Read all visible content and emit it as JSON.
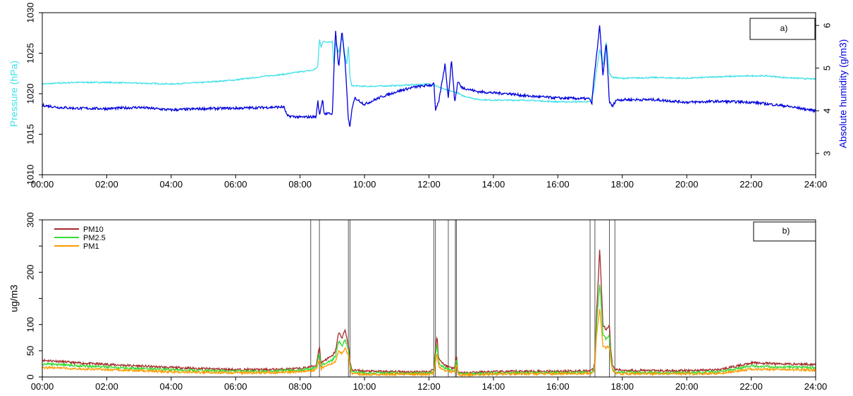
{
  "x_ticks": [
    "00:00",
    "02:00",
    "04:00",
    "06:00",
    "08:00",
    "10:00",
    "12:00",
    "14:00",
    "16:00",
    "18:00",
    "20:00",
    "22:00",
    "24:00"
  ],
  "chart_data": [
    {
      "type": "line",
      "panel_label": "a)",
      "x_unit": "hours of day",
      "xlim": [
        0,
        24
      ],
      "ylabel": "Pressure (hPa)",
      "ylim": [
        1010,
        1030
      ],
      "y_ticks": [
        1010,
        1015,
        1020,
        1025,
        1030
      ],
      "y2label": "Absolute humidity (g/m3)",
      "y2lim": [
        2.5,
        6.3
      ],
      "y2_ticks": [
        3,
        4,
        5,
        6
      ],
      "grid": false,
      "series": [
        {
          "axis": "left",
          "color": "#40e0e8",
          "x": [
            0,
            1,
            2,
            3,
            4,
            5,
            6,
            7,
            7.5,
            8,
            8.4,
            8.55,
            8.6,
            8.65,
            8.7,
            9.0,
            9.05,
            9.1,
            9.2,
            9.3,
            9.45,
            9.5,
            9.55,
            9.6,
            10,
            11,
            12,
            12.2,
            12.5,
            12.9,
            13,
            13.5,
            14,
            15,
            16,
            17,
            17.1,
            17.2,
            17.3,
            17.4,
            17.5,
            17.6,
            17.7,
            18,
            19,
            20,
            21,
            22,
            22.5,
            23,
            24
          ],
          "values": [
            1021.2,
            1021.4,
            1021.4,
            1021.3,
            1021.2,
            1021.4,
            1021.7,
            1022.2,
            1022.4,
            1022.7,
            1022.9,
            1023.3,
            1026.8,
            1025.7,
            1026.4,
            1026.4,
            1023.5,
            1026.3,
            1025.0,
            1027.0,
            1023.5,
            1026.0,
            1022.0,
            1021.0,
            1020.9,
            1021.0,
            1021.2,
            1021.0,
            1020.5,
            1020.1,
            1019.8,
            1019.3,
            1019.2,
            1019.2,
            1019.0,
            1019.0,
            1020.0,
            1023.0,
            1025.5,
            1023.5,
            1026.5,
            1022.5,
            1022.0,
            1021.9,
            1022.0,
            1021.9,
            1022.1,
            1022.2,
            1022.2,
            1022.0,
            1021.8
          ]
        },
        {
          "axis": "right",
          "color": "#0000dd",
          "x": [
            0,
            0.5,
            1,
            2,
            3,
            4,
            5,
            6,
            7,
            7.5,
            7.6,
            8,
            8.5,
            8.55,
            8.6,
            8.7,
            8.75,
            9.0,
            9.1,
            9.2,
            9.3,
            9.4,
            9.5,
            9.55,
            9.6,
            9.7,
            10,
            10.5,
            11,
            11.5,
            12,
            12.1,
            12.15,
            12.2,
            12.3,
            12.5,
            12.6,
            12.7,
            12.8,
            12.9,
            13,
            13.5,
            14,
            14.5,
            15,
            16,
            17,
            17.05,
            17.1,
            17.2,
            17.3,
            17.4,
            17.5,
            17.6,
            17.7,
            17.8,
            18,
            19,
            20,
            21,
            22,
            23,
            24
          ],
          "values": [
            4.13,
            4.08,
            4.06,
            4.05,
            4.08,
            4.02,
            4.05,
            4.06,
            4.08,
            4.09,
            3.88,
            3.85,
            3.86,
            4.25,
            3.89,
            4.27,
            3.93,
            3.93,
            5.9,
            5.0,
            5.9,
            5.1,
            3.8,
            3.6,
            4.0,
            4.3,
            4.15,
            4.32,
            4.45,
            4.55,
            4.6,
            4.6,
            4.7,
            4.0,
            4.2,
            5.1,
            4.3,
            5.2,
            4.2,
            4.7,
            4.55,
            4.45,
            4.42,
            4.4,
            4.35,
            4.3,
            4.28,
            4.12,
            4.6,
            5.3,
            6.0,
            4.8,
            5.6,
            4.2,
            4.1,
            4.25,
            4.26,
            4.26,
            4.2,
            4.22,
            4.2,
            4.12,
            4.0
          ]
        }
      ]
    },
    {
      "type": "line",
      "panel_label": "b)",
      "x_unit": "hours of day",
      "xlim": [
        0,
        24
      ],
      "ylabel": "ug/m3",
      "ylim": [
        0,
        300
      ],
      "y_ticks": [
        0,
        50,
        100,
        150,
        200,
        250,
        300
      ],
      "y_tick_labels": [
        "0",
        "50",
        "100",
        "",
        "200",
        "",
        "300"
      ],
      "grid": false,
      "legend": "top-left",
      "event_lines": [
        8.33,
        8.6,
        9.5,
        9.55,
        12.15,
        12.2,
        12.6,
        12.82,
        12.85,
        17.0,
        17.15,
        17.6,
        17.77
      ],
      "series": [
        {
          "name": "PM10",
          "color": "#a52a2a",
          "x": [
            0,
            0.5,
            1,
            2,
            3,
            4,
            5,
            6,
            7,
            8,
            8.3,
            8.5,
            8.6,
            8.65,
            8.7,
            9.0,
            9.1,
            9.2,
            9.3,
            9.4,
            9.5,
            9.55,
            9.6,
            9.8,
            10,
            11,
            12,
            12.15,
            12.25,
            12.3,
            12.5,
            12.8,
            12.85,
            12.9,
            13,
            14,
            15,
            16,
            17,
            17.1,
            17.15,
            17.2,
            17.3,
            17.4,
            17.5,
            17.6,
            17.65,
            17.7,
            17.8,
            18,
            19,
            20,
            21,
            21.5,
            22,
            23,
            24
          ],
          "values": [
            32,
            30,
            27,
            24,
            21,
            18,
            16,
            14,
            14,
            16,
            19,
            22,
            60,
            25,
            30,
            40,
            50,
            85,
            75,
            90,
            60,
            30,
            14,
            12,
            11,
            10,
            10,
            15,
            80,
            35,
            22,
            16,
            45,
            10,
            8,
            10,
            11,
            11,
            12,
            14,
            30,
            120,
            245,
            100,
            90,
            100,
            45,
            20,
            14,
            13,
            12,
            12,
            14,
            20,
            27,
            25,
            24
          ]
        },
        {
          "name": "PM2.5",
          "color": "#33dd33",
          "x": [
            0,
            0.5,
            1,
            2,
            3,
            4,
            5,
            6,
            7,
            8,
            8.3,
            8.5,
            8.6,
            8.65,
            8.7,
            9.0,
            9.1,
            9.2,
            9.3,
            9.4,
            9.5,
            9.55,
            9.6,
            9.8,
            10,
            11,
            12,
            12.15,
            12.25,
            12.3,
            12.5,
            12.8,
            12.85,
            12.9,
            13,
            14,
            15,
            16,
            17,
            17.1,
            17.15,
            17.2,
            17.3,
            17.4,
            17.5,
            17.6,
            17.65,
            17.7,
            17.8,
            18,
            19,
            20,
            21,
            21.5,
            22,
            23,
            24
          ],
          "values": [
            25,
            24,
            22,
            19,
            16,
            14,
            12,
            11,
            11,
            13,
            15,
            18,
            45,
            20,
            24,
            32,
            40,
            68,
            60,
            72,
            50,
            24,
            10,
            9,
            8,
            7,
            7,
            11,
            65,
            27,
            17,
            12,
            35,
            7,
            6,
            7,
            8,
            8,
            9,
            11,
            24,
            100,
            180,
            82,
            72,
            80,
            36,
            15,
            10,
            9,
            8,
            8,
            10,
            15,
            21,
            19,
            18
          ]
        },
        {
          "name": "PM1",
          "color": "#ff9900",
          "x": [
            0,
            0.5,
            1,
            2,
            3,
            4,
            5,
            6,
            7,
            8,
            8.3,
            8.5,
            8.6,
            8.65,
            8.7,
            9.0,
            9.1,
            9.2,
            9.3,
            9.4,
            9.5,
            9.55,
            9.6,
            9.8,
            10,
            11,
            12,
            12.15,
            12.25,
            12.3,
            12.5,
            12.8,
            12.85,
            12.9,
            13,
            14,
            15,
            16,
            17,
            17.1,
            17.15,
            17.2,
            17.3,
            17.4,
            17.5,
            17.6,
            17.65,
            17.7,
            17.8,
            18,
            19,
            20,
            21,
            21.5,
            22,
            23,
            24
          ],
          "values": [
            18,
            17,
            16,
            14,
            12,
            10,
            9,
            8,
            8,
            10,
            12,
            14,
            35,
            15,
            18,
            25,
            30,
            50,
            45,
            55,
            40,
            18,
            7,
            6,
            5,
            5,
            5,
            8,
            45,
            20,
            12,
            9,
            25,
            5,
            4,
            5,
            6,
            6,
            7,
            8,
            18,
            80,
            130,
            60,
            55,
            60,
            28,
            11,
            7,
            6,
            6,
            6,
            7,
            11,
            15,
            14,
            13
          ]
        }
      ]
    }
  ]
}
